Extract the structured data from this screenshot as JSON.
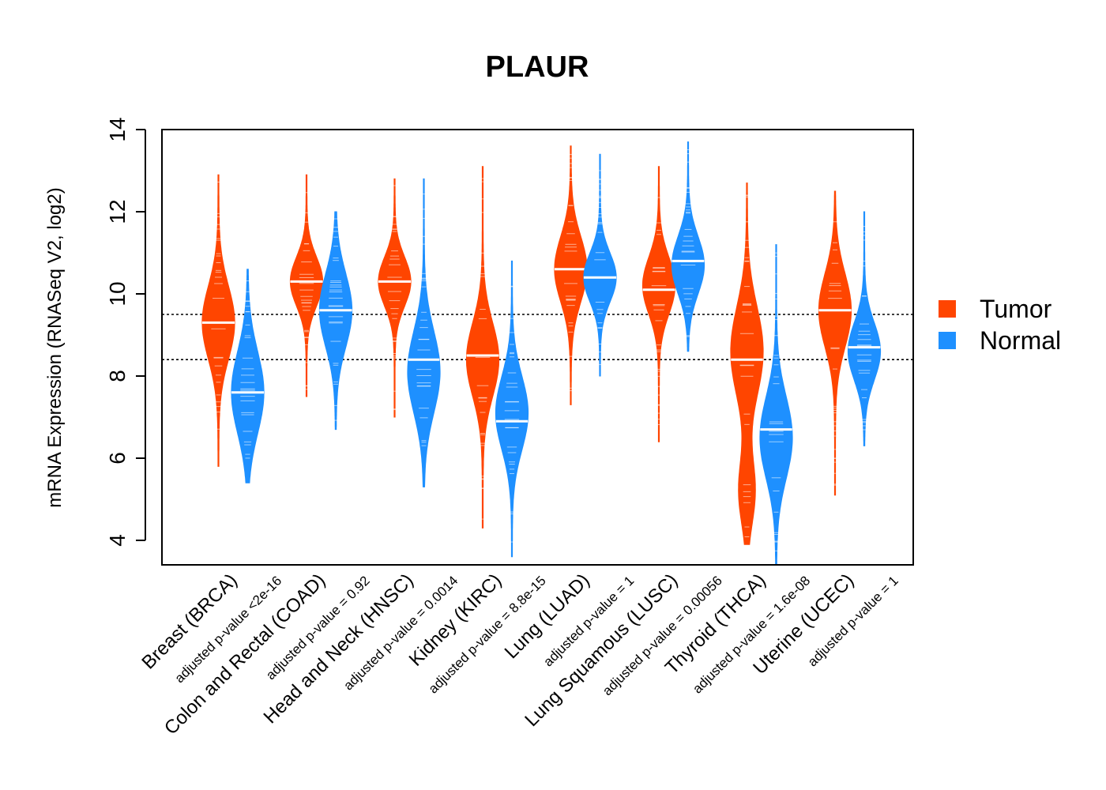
{
  "chart_data": {
    "type": "violin",
    "title": "PLAUR",
    "ylabel": "mRNA Expression (RNASeq V2, log2)",
    "ylim": [
      3.4,
      14.0
    ],
    "yticks": [
      4,
      6,
      8,
      10,
      12,
      14
    ],
    "reference_lines": [
      9.5,
      8.4
    ],
    "legend": {
      "position": "right",
      "entries": [
        "Tumor",
        "Normal"
      ]
    },
    "colors": {
      "Tumor": "#FF4500",
      "Normal": "#1E90FF",
      "median": "#FFFFFF"
    },
    "categories": [
      {
        "label": "Breast (BRCA)",
        "pvalue": "adjusted p-value <2e-16",
        "tumor": {
          "min": 5.8,
          "max": 12.9,
          "median": 9.3,
          "modes": [
            [
              9.3,
              0.9,
              1.0
            ]
          ]
        },
        "normal": {
          "min": 5.4,
          "max": 10.6,
          "median": 7.6,
          "modes": [
            [
              7.6,
              1.0,
              1.0
            ]
          ]
        }
      },
      {
        "label": "Colon and Rectal (COAD)",
        "pvalue": "adjusted p-value = 0.92",
        "tumor": {
          "min": 7.5,
          "max": 12.9,
          "median": 10.3,
          "modes": [
            [
              10.3,
              0.6,
              1.0
            ]
          ]
        },
        "normal": {
          "min": 6.7,
          "max": 12.0,
          "median": 9.6,
          "modes": [
            [
              9.6,
              0.9,
              1.0
            ]
          ]
        }
      },
      {
        "label": "Head and Neck (HNSC)",
        "pvalue": "adjusted p-value = 0.0014",
        "tumor": {
          "min": 7.0,
          "max": 12.8,
          "median": 10.3,
          "modes": [
            [
              10.3,
              0.6,
              1.0
            ]
          ]
        },
        "normal": {
          "min": 5.3,
          "max": 12.8,
          "median": 8.4,
          "modes": [
            [
              8.1,
              1.0,
              1.0
            ]
          ]
        }
      },
      {
        "label": "Kidney (KIRC)",
        "pvalue": "adjusted p-value = 8.8e-15",
        "tumor": {
          "min": 4.3,
          "max": 13.1,
          "median": 8.5,
          "modes": [
            [
              8.4,
              0.9,
              1.0
            ]
          ]
        },
        "normal": {
          "min": 3.6,
          "max": 10.8,
          "median": 6.9,
          "modes": [
            [
              7.1,
              0.9,
              1.0
            ]
          ]
        }
      },
      {
        "label": "Lung (LUAD)",
        "pvalue": "adjusted p-value = 1",
        "tumor": {
          "min": 7.3,
          "max": 13.6,
          "median": 10.6,
          "modes": [
            [
              10.6,
              0.8,
              1.0
            ]
          ]
        },
        "normal": {
          "min": 8.0,
          "max": 13.4,
          "median": 10.4,
          "modes": [
            [
              10.4,
              0.6,
              1.0
            ]
          ]
        }
      },
      {
        "label": "Lung Squamous (LUSC)",
        "pvalue": "adjusted p-value = 0.00056",
        "tumor": {
          "min": 6.4,
          "max": 13.1,
          "median": 10.1,
          "modes": [
            [
              10.2,
              0.7,
              1.0
            ]
          ]
        },
        "normal": {
          "min": 8.6,
          "max": 13.7,
          "median": 10.8,
          "modes": [
            [
              10.7,
              0.7,
              1.0
            ]
          ]
        }
      },
      {
        "label": "Thyroid (THCA)",
        "pvalue": "adjusted p-value = 1.6e-08",
        "tumor": {
          "min": 3.9,
          "max": 12.7,
          "median": 8.4,
          "modes": [
            [
              8.6,
              1.1,
              0.7
            ],
            [
              5.2,
              0.8,
              0.35
            ]
          ]
        },
        "normal": {
          "min": 3.4,
          "max": 11.2,
          "median": 6.7,
          "modes": [
            [
              6.5,
              1.0,
              1.0
            ]
          ]
        }
      },
      {
        "label": "Uterine (UCEC)",
        "pvalue": "adjusted p-value = 1",
        "tumor": {
          "min": 5.1,
          "max": 12.5,
          "median": 9.6,
          "modes": [
            [
              9.6,
              0.9,
              1.0
            ]
          ]
        },
        "normal": {
          "min": 6.3,
          "max": 12.0,
          "median": 8.7,
          "modes": [
            [
              8.6,
              0.7,
              1.0
            ]
          ]
        }
      }
    ]
  }
}
